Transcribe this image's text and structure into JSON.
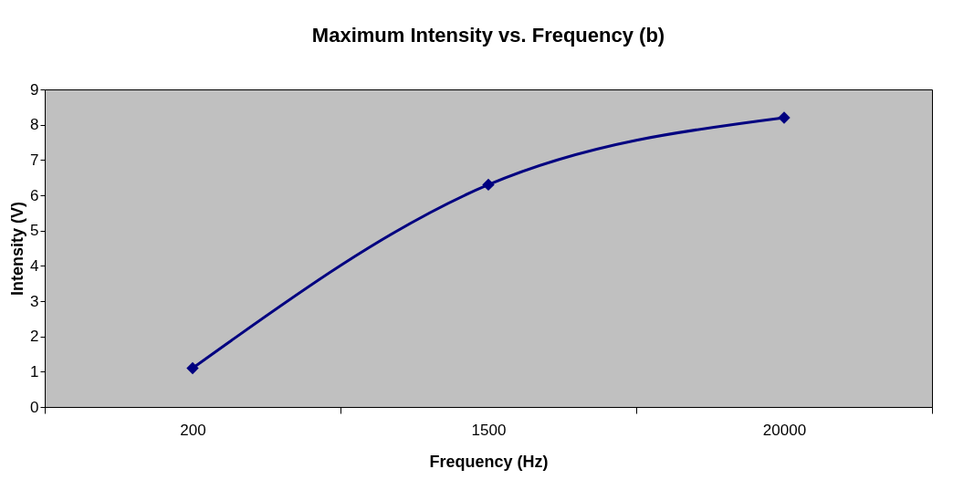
{
  "chart_data": {
    "type": "line",
    "title": "Maximum Intensity vs. Frequency (b)",
    "xlabel": "Frequency (Hz)",
    "ylabel": "Intensity (V)",
    "categories": [
      "200",
      "1500",
      "20000"
    ],
    "series": [
      {
        "color": "#000080",
        "values": [
          1.1,
          6.3,
          8.2
        ]
      }
    ],
    "ylim": [
      0,
      9
    ],
    "yticks": [
      0,
      1,
      2,
      3,
      4,
      5,
      6,
      7,
      8,
      9
    ],
    "grid": false,
    "legend": false,
    "marker": "diamond",
    "line_style": "solid"
  }
}
